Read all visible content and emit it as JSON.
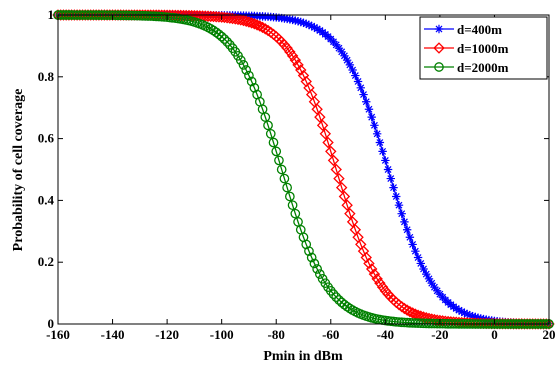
{
  "chart_data": {
    "type": "line",
    "xlabel": "Pmin in dBm",
    "ylabel": "Probability of cell coverage",
    "xlim": [
      -160,
      20
    ],
    "ylim": [
      0,
      1
    ],
    "xticks": [
      -160,
      -140,
      -120,
      -100,
      -80,
      -60,
      -40,
      -20,
      0,
      20
    ],
    "yticks": [
      0,
      0.2,
      0.4,
      0.6,
      0.8,
      1
    ],
    "xtick_labels": [
      "-160",
      "-140",
      "-120",
      "-100",
      "-80",
      "-60",
      "-40",
      "-20",
      "0",
      "20"
    ],
    "ytick_labels": [
      "0",
      "0.2",
      "0.4",
      "0.6",
      "0.8",
      "1"
    ],
    "grid": false,
    "legend_position": "top-right",
    "x_start": -160,
    "x_end": 20,
    "x_step": 1,
    "series": [
      {
        "name": "d=400m",
        "color": "#0000ff",
        "marker": "asterisk",
        "midpoint_dbm": -39,
        "spread_db": 8.5
      },
      {
        "name": "d=1000m",
        "color": "#ff0000",
        "marker": "diamond",
        "midpoint_dbm": -58,
        "spread_db": 8.5
      },
      {
        "name": "d=2000m",
        "color": "#008000",
        "marker": "circle",
        "midpoint_dbm": -78,
        "spread_db": 8.5
      }
    ]
  }
}
